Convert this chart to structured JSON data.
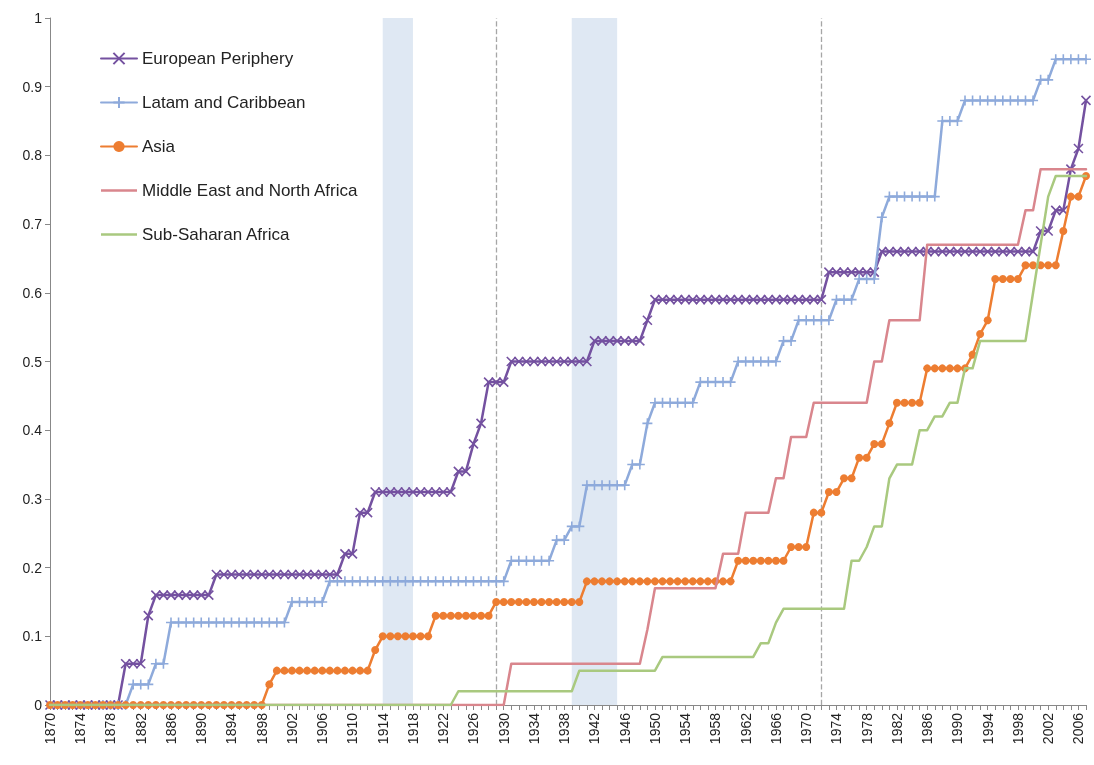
{
  "chart_data": {
    "type": "line",
    "x": [
      1870,
      1871,
      1872,
      1873,
      1874,
      1875,
      1876,
      1877,
      1878,
      1879,
      1880,
      1881,
      1882,
      1883,
      1884,
      1885,
      1886,
      1887,
      1888,
      1889,
      1890,
      1891,
      1892,
      1893,
      1894,
      1895,
      1896,
      1897,
      1898,
      1899,
      1900,
      1901,
      1902,
      1903,
      1904,
      1905,
      1906,
      1907,
      1908,
      1909,
      1910,
      1911,
      1912,
      1913,
      1914,
      1915,
      1916,
      1917,
      1918,
      1919,
      1920,
      1921,
      1922,
      1923,
      1924,
      1925,
      1926,
      1927,
      1928,
      1929,
      1930,
      1931,
      1932,
      1933,
      1934,
      1935,
      1936,
      1937,
      1938,
      1939,
      1940,
      1941,
      1942,
      1943,
      1944,
      1945,
      1946,
      1947,
      1948,
      1949,
      1950,
      1951,
      1952,
      1953,
      1954,
      1955,
      1956,
      1957,
      1958,
      1959,
      1960,
      1961,
      1962,
      1963,
      1964,
      1965,
      1966,
      1967,
      1968,
      1969,
      1970,
      1971,
      1972,
      1973,
      1974,
      1975,
      1976,
      1977,
      1978,
      1979,
      1980,
      1981,
      1982,
      1983,
      1984,
      1985,
      1986,
      1987,
      1988,
      1989,
      1990,
      1991,
      1992,
      1993,
      1994,
      1995,
      1996,
      1997,
      1998,
      1999,
      2000,
      2001,
      2002,
      2003,
      2004,
      2005,
      2006,
      2007
    ],
    "series": [
      {
        "name": "European Periphery",
        "color": "#7451a0",
        "marker": "x",
        "values": [
          0,
          0,
          0,
          0,
          0,
          0,
          0,
          0,
          0,
          0,
          0.06,
          0.06,
          0.06,
          0.13,
          0.16,
          0.16,
          0.16,
          0.16,
          0.16,
          0.16,
          0.16,
          0.16,
          0.19,
          0.19,
          0.19,
          0.19,
          0.19,
          0.19,
          0.19,
          0.19,
          0.19,
          0.19,
          0.19,
          0.19,
          0.19,
          0.19,
          0.19,
          0.19,
          0.19,
          0.22,
          0.22,
          0.28,
          0.28,
          0.31,
          0.31,
          0.31,
          0.31,
          0.31,
          0.31,
          0.31,
          0.31,
          0.31,
          0.31,
          0.31,
          0.34,
          0.34,
          0.38,
          0.41,
          0.47,
          0.47,
          0.47,
          0.5,
          0.5,
          0.5,
          0.5,
          0.5,
          0.5,
          0.5,
          0.5,
          0.5,
          0.5,
          0.5,
          0.53,
          0.53,
          0.53,
          0.53,
          0.53,
          0.53,
          0.53,
          0.56,
          0.59,
          0.59,
          0.59,
          0.59,
          0.59,
          0.59,
          0.59,
          0.59,
          0.59,
          0.59,
          0.59,
          0.59,
          0.59,
          0.59,
          0.59,
          0.59,
          0.59,
          0.59,
          0.59,
          0.59,
          0.59,
          0.59,
          0.59,
          0.63,
          0.63,
          0.63,
          0.63,
          0.63,
          0.63,
          0.63,
          0.66,
          0.66,
          0.66,
          0.66,
          0.66,
          0.66,
          0.66,
          0.66,
          0.66,
          0.66,
          0.66,
          0.66,
          0.66,
          0.66,
          0.66,
          0.66,
          0.66,
          0.66,
          0.66,
          0.66,
          0.66,
          0.69,
          0.69,
          0.72,
          0.72,
          0.78,
          0.81,
          0.88
        ]
      },
      {
        "name": "Latam and Caribbean",
        "color": "#8eaadb",
        "marker": "cross",
        "values": [
          null,
          null,
          null,
          null,
          null,
          null,
          null,
          0,
          0,
          0,
          0,
          0.03,
          0.03,
          0.03,
          0.06,
          0.06,
          0.12,
          0.12,
          0.12,
          0.12,
          0.12,
          0.12,
          0.12,
          0.12,
          0.12,
          0.12,
          0.12,
          0.12,
          0.12,
          0.12,
          0.12,
          0.12,
          0.15,
          0.15,
          0.15,
          0.15,
          0.15,
          0.18,
          0.18,
          0.18,
          0.18,
          0.18,
          0.18,
          0.18,
          0.18,
          0.18,
          0.18,
          0.18,
          0.18,
          0.18,
          0.18,
          0.18,
          0.18,
          0.18,
          0.18,
          0.18,
          0.18,
          0.18,
          0.18,
          0.18,
          0.18,
          0.21,
          0.21,
          0.21,
          0.21,
          0.21,
          0.21,
          0.24,
          0.24,
          0.26,
          0.26,
          0.32,
          0.32,
          0.32,
          0.32,
          0.32,
          0.32,
          0.35,
          0.35,
          0.41,
          0.44,
          0.44,
          0.44,
          0.44,
          0.44,
          0.44,
          0.47,
          0.47,
          0.47,
          0.47,
          0.47,
          0.5,
          0.5,
          0.5,
          0.5,
          0.5,
          0.5,
          0.53,
          0.53,
          0.56,
          0.56,
          0.56,
          0.56,
          0.56,
          0.59,
          0.59,
          0.59,
          0.62,
          0.62,
          0.62,
          0.71,
          0.74,
          0.74,
          0.74,
          0.74,
          0.74,
          0.74,
          0.74,
          0.85,
          0.85,
          0.85,
          0.88,
          0.88,
          0.88,
          0.88,
          0.88,
          0.88,
          0.88,
          0.88,
          0.88,
          0.88,
          0.91,
          0.91,
          0.94,
          0.94,
          0.94,
          0.94,
          0.94
        ]
      },
      {
        "name": "Asia",
        "color": "#ed7d31",
        "marker": "circle",
        "values": [
          0,
          0,
          0,
          0,
          0,
          0,
          0,
          0,
          0,
          0,
          0,
          0,
          0,
          0,
          0,
          0,
          0,
          0,
          0,
          0,
          0,
          0,
          0,
          0,
          0,
          0,
          0,
          0,
          0,
          0.03,
          0.05,
          0.05,
          0.05,
          0.05,
          0.05,
          0.05,
          0.05,
          0.05,
          0.05,
          0.05,
          0.05,
          0.05,
          0.05,
          0.08,
          0.1,
          0.1,
          0.1,
          0.1,
          0.1,
          0.1,
          0.1,
          0.13,
          0.13,
          0.13,
          0.13,
          0.13,
          0.13,
          0.13,
          0.13,
          0.15,
          0.15,
          0.15,
          0.15,
          0.15,
          0.15,
          0.15,
          0.15,
          0.15,
          0.15,
          0.15,
          0.15,
          0.18,
          0.18,
          0.18,
          0.18,
          0.18,
          0.18,
          0.18,
          0.18,
          0.18,
          0.18,
          0.18,
          0.18,
          0.18,
          0.18,
          0.18,
          0.18,
          0.18,
          0.18,
          0.18,
          0.18,
          0.21,
          0.21,
          0.21,
          0.21,
          0.21,
          0.21,
          0.21,
          0.23,
          0.23,
          0.23,
          0.28,
          0.28,
          0.31,
          0.31,
          0.33,
          0.33,
          0.36,
          0.36,
          0.38,
          0.38,
          0.41,
          0.44,
          0.44,
          0.44,
          0.44,
          0.49,
          0.49,
          0.49,
          0.49,
          0.49,
          0.49,
          0.51,
          0.54,
          0.56,
          0.62,
          0.62,
          0.62,
          0.62,
          0.64,
          0.64,
          0.64,
          0.64,
          0.64,
          0.69,
          0.74,
          0.74,
          0.77
        ]
      },
      {
        "name": "Middle East and North Africa",
        "color": "#d9868d",
        "marker": "none",
        "values": [
          0,
          0,
          0,
          0,
          0,
          0,
          0,
          0,
          0,
          0,
          0,
          0,
          0,
          0,
          0,
          0,
          0,
          0,
          0,
          0,
          0,
          0,
          0,
          0,
          0,
          0,
          0,
          0,
          0,
          0,
          0,
          0,
          0,
          0,
          0,
          0,
          0,
          0,
          0,
          0,
          0,
          0,
          0,
          0,
          0,
          0,
          0,
          0,
          0,
          0,
          0,
          0,
          0,
          0,
          0,
          0,
          0,
          0,
          0,
          0,
          0,
          0.06,
          0.06,
          0.06,
          0.06,
          0.06,
          0.06,
          0.06,
          0.06,
          0.06,
          0.06,
          0.06,
          0.06,
          0.06,
          0.06,
          0.06,
          0.06,
          0.06,
          0.06,
          0.11,
          0.17,
          0.17,
          0.17,
          0.17,
          0.17,
          0.17,
          0.17,
          0.17,
          0.17,
          0.22,
          0.22,
          0.22,
          0.28,
          0.28,
          0.28,
          0.28,
          0.33,
          0.33,
          0.39,
          0.39,
          0.39,
          0.44,
          0.44,
          0.44,
          0.44,
          0.44,
          0.44,
          0.44,
          0.44,
          0.5,
          0.5,
          0.56,
          0.56,
          0.56,
          0.56,
          0.56,
          0.67,
          0.67,
          0.67,
          0.67,
          0.67,
          0.67,
          0.67,
          0.67,
          0.67,
          0.67,
          0.67,
          0.67,
          0.67,
          0.72,
          0.72,
          0.78,
          0.78,
          0.78,
          0.78,
          0.78,
          0.78,
          0.78
        ]
      },
      {
        "name": "Sub-Saharan Africa",
        "color": "#a9c97f",
        "marker": "none",
        "values": [
          0,
          0,
          0,
          0,
          0,
          0,
          0,
          0,
          0,
          0,
          0,
          0,
          0,
          0,
          0,
          0,
          0,
          0,
          0,
          0,
          0,
          0,
          0,
          0,
          0,
          0,
          0,
          0,
          0,
          0,
          0,
          0,
          0,
          0,
          0,
          0,
          0,
          0,
          0,
          0,
          0,
          0,
          0,
          0,
          0,
          0,
          0,
          0,
          0,
          0,
          0,
          0,
          0,
          0,
          0.02,
          0.02,
          0.02,
          0.02,
          0.02,
          0.02,
          0.02,
          0.02,
          0.02,
          0.02,
          0.02,
          0.02,
          0.02,
          0.02,
          0.02,
          0.02,
          0.05,
          0.05,
          0.05,
          0.05,
          0.05,
          0.05,
          0.05,
          0.05,
          0.05,
          0.05,
          0.05,
          0.07,
          0.07,
          0.07,
          0.07,
          0.07,
          0.07,
          0.07,
          0.07,
          0.07,
          0.07,
          0.07,
          0.07,
          0.07,
          0.09,
          0.09,
          0.12,
          0.14,
          0.14,
          0.14,
          0.14,
          0.14,
          0.14,
          0.14,
          0.14,
          0.14,
          0.21,
          0.21,
          0.23,
          0.26,
          0.26,
          0.33,
          0.35,
          0.35,
          0.35,
          0.4,
          0.4,
          0.42,
          0.42,
          0.44,
          0.44,
          0.49,
          0.49,
          0.53,
          0.53,
          0.53,
          0.53,
          0.53,
          0.53,
          0.53,
          0.6,
          0.67,
          0.74,
          0.77,
          0.77,
          0.77,
          0.77,
          0.77
        ]
      }
    ],
    "xlim": [
      1870,
      2007
    ],
    "xticks": [
      1870,
      1874,
      1878,
      1882,
      1886,
      1890,
      1894,
      1898,
      1902,
      1906,
      1910,
      1914,
      1918,
      1922,
      1926,
      1930,
      1934,
      1938,
      1942,
      1946,
      1950,
      1954,
      1958,
      1962,
      1966,
      1970,
      1974,
      1978,
      1982,
      1986,
      1990,
      1994,
      1998,
      2002,
      2006
    ],
    "ylim": [
      0,
      1
    ],
    "yticks": [
      0,
      0.1,
      0.2,
      0.3,
      0.4,
      0.5,
      0.6,
      0.7,
      0.8,
      0.9,
      1
    ],
    "grid": false,
    "legend": "top left",
    "bands": [
      {
        "axis": "x",
        "from": 1914,
        "to": 1918,
        "color": "#dce6f2"
      },
      {
        "axis": "x",
        "from": 1939,
        "to": 1945,
        "color": "#dce6f2"
      }
    ],
    "ref_lines": [
      {
        "axis": "x",
        "value": 1929,
        "color": "#a6a6a6",
        "line_style": "dashed"
      },
      {
        "axis": "x",
        "value": 1972,
        "color": "#a6a6a6",
        "line_style": "dashed"
      }
    ]
  }
}
